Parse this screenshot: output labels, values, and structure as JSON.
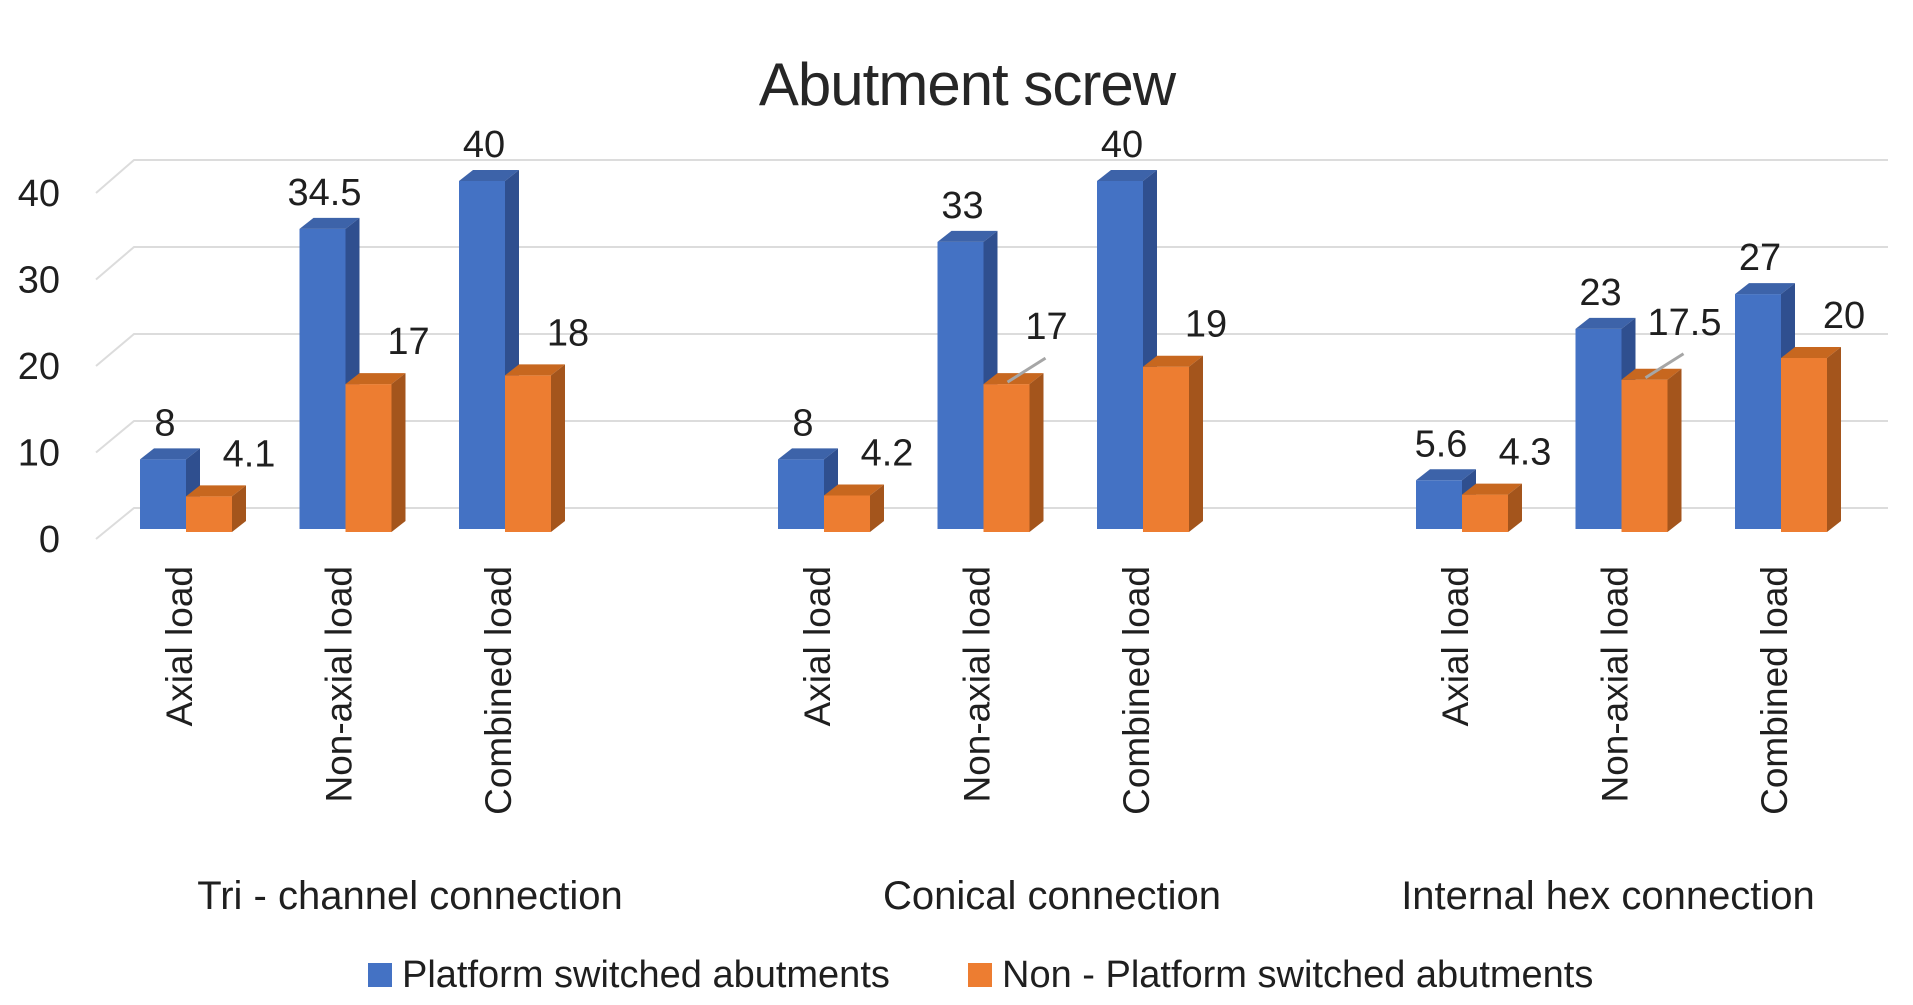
{
  "chart_data": {
    "type": "bar",
    "effect": "3d",
    "title": "Abutment screw",
    "categories": [
      "Axial load",
      "Non-axial load",
      "Combined load"
    ],
    "groups": [
      "Tri - channel connection",
      "Conical connection",
      "Internal hex connection"
    ],
    "series": [
      {
        "name": "Platform switched abutments",
        "color": {
          "front": "#4472C4",
          "top": "#3D63A9",
          "side": "#2F4F8F"
        },
        "values": [
          [
            8,
            34.5,
            40
          ],
          [
            8,
            33,
            40
          ],
          [
            5.6,
            23,
            27
          ]
        ]
      },
      {
        "name": "Non - Platform switched abutments",
        "color": {
          "front": "#ED7D31",
          "top": "#C7671F",
          "side": "#A4551C"
        },
        "values": [
          [
            4.1,
            17,
            18
          ],
          [
            4.2,
            17,
            19
          ],
          [
            4.3,
            17.5,
            20
          ]
        ]
      }
    ],
    "y_axis": {
      "min": 0,
      "max": 40,
      "ticks": [
        0,
        10,
        20,
        30,
        40
      ]
    },
    "grid": true,
    "grid_color": "#DCDCDC",
    "leader_color": "#A6A6A6",
    "data_labels": true,
    "legend_position": "bottom",
    "label_leader_lines": [
      {
        "group": 1,
        "category": 1,
        "series": 1
      },
      {
        "group": 2,
        "category": 1,
        "series": 1
      }
    ],
    "background": "#FFFFFF"
  }
}
